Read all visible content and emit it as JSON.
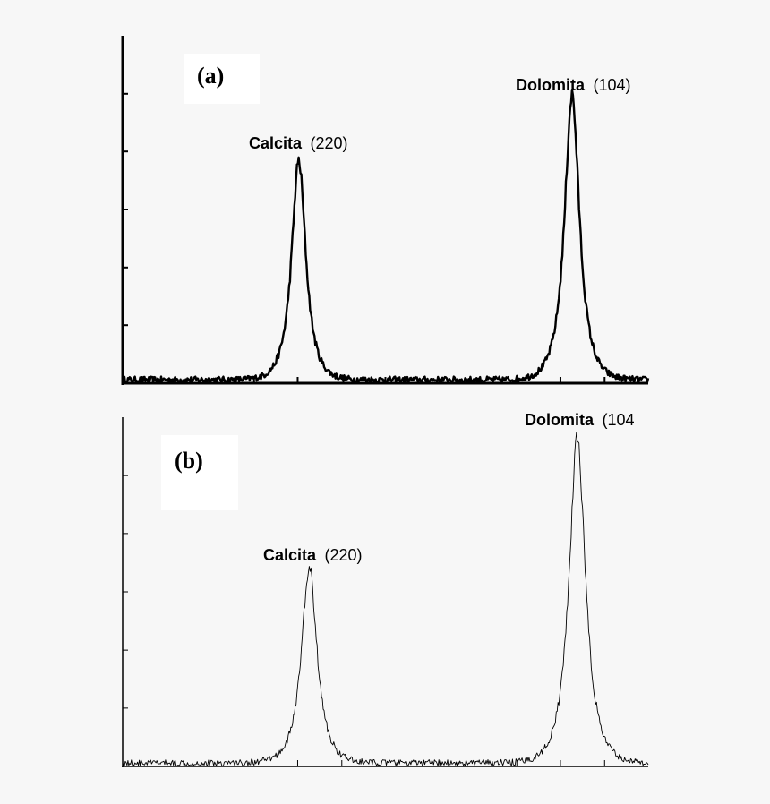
{
  "chart_data": [
    {
      "type": "line",
      "panel_label": "(a)",
      "title": "",
      "xlabel": "",
      "ylabel": "",
      "xlim": [
        0,
        100
      ],
      "ylim": [
        0,
        100
      ],
      "x_ticks": [
        25,
        33.3,
        50,
        75,
        83.3,
        91.7
      ],
      "y_ticks": [
        16.7,
        33.3,
        50,
        66.7,
        83.3
      ],
      "grid": false,
      "line_color": "#000000",
      "line_weight": "heavy",
      "noise": 0.9,
      "baseline": 1.0,
      "peaks": [
        {
          "name": "Calcita",
          "hkl": "(220)",
          "center": 33.5,
          "height": 63,
          "width": 1.9
        },
        {
          "name": "Dolomita",
          "hkl": "(104)",
          "center": 85.5,
          "height": 82,
          "width": 2.0
        }
      ]
    },
    {
      "type": "line",
      "panel_label": "(b)",
      "title": "",
      "xlabel": "",
      "ylabel": "",
      "xlim": [
        0,
        100
      ],
      "ylim": [
        0,
        100
      ],
      "x_ticks": [
        33.3,
        41.7,
        75,
        83.3,
        91.7
      ],
      "y_ticks": [
        16.7,
        33.3,
        50,
        66.7,
        83.3
      ],
      "grid": false,
      "line_color": "#000000",
      "line_weight": "thin",
      "noise": 0.9,
      "baseline": 1.0,
      "peaks": [
        {
          "name": "Calcita",
          "hkl": "(220)",
          "center": 35.5,
          "height": 56,
          "width": 2.1
        },
        {
          "name": "Dolomita",
          "hkl": "(104",
          "center": 86.5,
          "height": 93,
          "width": 2.2
        }
      ]
    }
  ]
}
